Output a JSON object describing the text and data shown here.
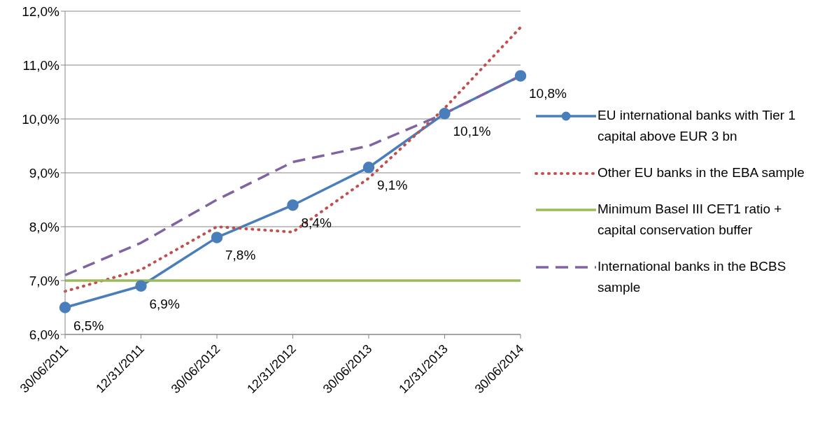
{
  "chart_data": {
    "type": "line",
    "categories": [
      "30/06/2011",
      "12/31/2011",
      "30/06/2012",
      "12/31/2012",
      "30/06/2013",
      "12/31/2013",
      "30/06/2014"
    ],
    "series": [
      {
        "name": "EU international banks with Tier 1 capital above EUR 3 bn",
        "color": "#4a7ebb",
        "values": [
          6.5,
          6.9,
          7.8,
          8.4,
          9.1,
          10.1,
          10.8
        ],
        "marker": "circle",
        "line_style": "solid",
        "value_labels": [
          "6,5%",
          "6,9%",
          "7,8%",
          "8,4%",
          "9,1%",
          "10,1%",
          "10,8%"
        ]
      },
      {
        "name": "Other EU banks in the EBA sample",
        "color": "#c0504d",
        "values": [
          6.8,
          7.2,
          8.0,
          7.9,
          8.9,
          10.2,
          11.7
        ],
        "marker": "none",
        "line_style": "dotted"
      },
      {
        "name": "Minimum Basel III CET1 ratio + capital conservation buffer",
        "color": "#9bbb59",
        "values": [
          7.0,
          7.0,
          7.0,
          7.0,
          7.0,
          7.0,
          7.0
        ],
        "marker": "none",
        "line_style": "solid"
      },
      {
        "name": "International banks in the BCBS sample",
        "color": "#8064a2",
        "values": [
          7.1,
          7.7,
          8.5,
          9.2,
          9.5,
          10.1,
          10.8
        ],
        "marker": "none",
        "line_style": "dashed"
      }
    ],
    "ylim": [
      6,
      12
    ],
    "yticks": [
      {
        "value": 6,
        "label": "6,0%"
      },
      {
        "value": 7,
        "label": "7,0%"
      },
      {
        "value": 8,
        "label": "8,0%"
      },
      {
        "value": 9,
        "label": "9,0%"
      },
      {
        "value": 10,
        "label": "10,0%"
      },
      {
        "value": 11,
        "label": "11,0%"
      },
      {
        "value": 12,
        "label": "12,0%"
      }
    ],
    "grid": "y",
    "legend": "right"
  }
}
